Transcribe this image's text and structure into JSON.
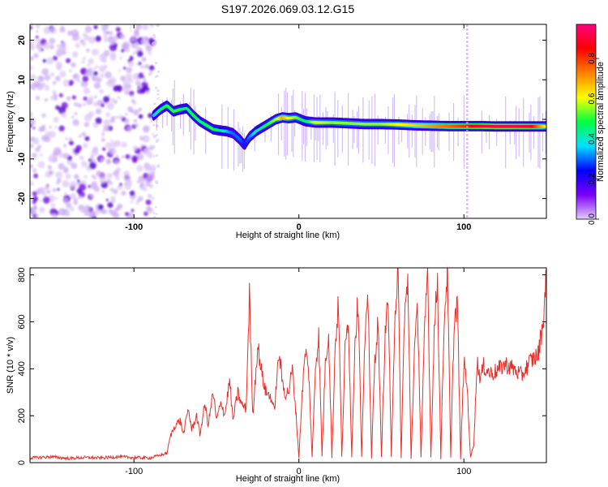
{
  "title": "S197.2026.069.03.12.G15",
  "chart_data": [
    {
      "type": "heatmap",
      "name": "spectrogram",
      "xlabel": "Height of straight line (km)",
      "ylabel": "Frequency (Hz)",
      "xlim": [
        -163,
        150
      ],
      "ylim": [
        -25,
        24
      ],
      "xticks": [
        -100,
        0,
        100
      ],
      "yticks": [
        -20,
        -10,
        0,
        10,
        20
      ],
      "colorbar": {
        "label": "Normalized spectral amplitude",
        "range": [
          0,
          0.97
        ],
        "ticks": [
          "0.0",
          "0.2",
          "0.4",
          "0.6",
          "0.8"
        ],
        "colors": [
          "#e6ccff",
          "#7a00ff",
          "#0000ff",
          "#00e0ff",
          "#00ff40",
          "#ffff00",
          "#ff8000",
          "#ff0000",
          "#ff0080"
        ]
      },
      "noise_region": {
        "x_from": -163,
        "x_to": -88,
        "freq_range": [
          -25,
          24
        ]
      },
      "track": {
        "x": [
          -88,
          -84,
          -80,
          -76,
          -72,
          -68,
          -64,
          -60,
          -56,
          -52,
          -48,
          -44,
          -40,
          -36,
          -33,
          -30,
          -26,
          -22,
          -18,
          -14,
          -10,
          -6,
          -2,
          4,
          10,
          20,
          30,
          40,
          50,
          60,
          70,
          80,
          90,
          100,
          110,
          120,
          130,
          140,
          150
        ],
        "freq": [
          1.0,
          2.5,
          3.5,
          2.0,
          2.5,
          2.8,
          1.0,
          -0.5,
          -1.5,
          -2.5,
          -2.8,
          -3.0,
          -3.5,
          -5.0,
          -6.5,
          -4.5,
          -3.0,
          -2.0,
          -1.0,
          0.0,
          0.5,
          0.3,
          0.5,
          -0.5,
          -0.8,
          -0.8,
          -1.0,
          -1.2,
          -1.2,
          -1.3,
          -1.5,
          -1.6,
          -1.7,
          -1.7,
          -1.7,
          -1.8,
          -1.8,
          -1.8,
          -1.8
        ],
        "amp": [
          0.35,
          0.45,
          0.5,
          0.5,
          0.5,
          0.45,
          0.5,
          0.45,
          0.5,
          0.5,
          0.45,
          0.35,
          0.3,
          0.3,
          0.25,
          0.3,
          0.4,
          0.45,
          0.5,
          0.55,
          0.7,
          0.6,
          0.55,
          0.45,
          0.6,
          0.55,
          0.55,
          0.55,
          0.55,
          0.6,
          0.65,
          0.7,
          0.75,
          0.8,
          0.9,
          0.92,
          0.92,
          0.9,
          0.6
        ]
      },
      "spur_x": 102
    },
    {
      "type": "line",
      "name": "snr",
      "xlabel": "Height of straight line (km)",
      "ylabel": "SNR (10 * v/v)",
      "xlim": [
        -163,
        150
      ],
      "ylim": [
        0,
        830
      ],
      "xticks": [
        -100,
        0,
        100
      ],
      "yticks": [
        0,
        200,
        400,
        600,
        800
      ],
      "color": "#e8302a",
      "x": [
        -163,
        -150,
        -140,
        -130,
        -120,
        -110,
        -100,
        -90,
        -80,
        -78,
        -75,
        -72,
        -70,
        -67,
        -65,
        -62,
        -60,
        -57,
        -55,
        -52,
        -50,
        -47,
        -45,
        -42,
        -40,
        -37,
        -35,
        -32,
        -30,
        -28,
        -25,
        -22,
        -20,
        -17,
        -15,
        -12,
        -10,
        -8,
        -6,
        -4,
        -2,
        0,
        2,
        4,
        6,
        8,
        10,
        12,
        14,
        16,
        18,
        20,
        22,
        24,
        26,
        28,
        30,
        32,
        34,
        36,
        38,
        40,
        42,
        44,
        46,
        48,
        50,
        52,
        54,
        56,
        58,
        60,
        62,
        64,
        66,
        68,
        70,
        72,
        74,
        76,
        78,
        80,
        82,
        84,
        86,
        88,
        90,
        92,
        94,
        96,
        98,
        100,
        102,
        104,
        106,
        108,
        110,
        112,
        116,
        120,
        125,
        130,
        135,
        140,
        145,
        148,
        150
      ],
      "y": [
        20,
        25,
        18,
        22,
        20,
        25,
        22,
        20,
        40,
        110,
        160,
        180,
        120,
        230,
        140,
        200,
        120,
        250,
        160,
        300,
        180,
        260,
        200,
        350,
        180,
        300,
        250,
        230,
        720,
        200,
        500,
        360,
        300,
        280,
        220,
        470,
        340,
        290,
        310,
        400,
        230,
        20,
        300,
        480,
        380,
        20,
        410,
        540,
        30,
        420,
        560,
        20,
        500,
        680,
        20,
        480,
        620,
        20,
        530,
        700,
        20,
        520,
        680,
        20,
        440,
        600,
        20,
        500,
        720,
        20,
        600,
        830,
        20,
        640,
        760,
        20,
        470,
        660,
        20,
        520,
        830,
        20,
        560,
        780,
        20,
        600,
        830,
        20,
        580,
        700,
        20,
        430,
        320,
        20,
        80,
        430,
        360,
        410,
        380,
        390,
        420,
        400,
        370,
        430,
        460,
        600,
        800
      ]
    }
  ]
}
